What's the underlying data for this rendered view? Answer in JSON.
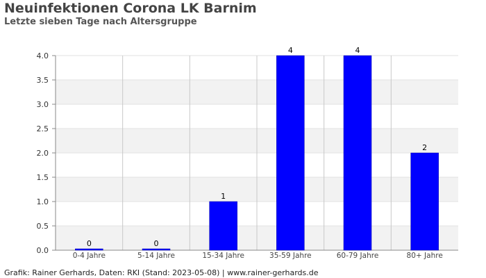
{
  "title": "Neuinfektionen Corona LK Barnim",
  "subtitle": "Letzte sieben Tage nach Altersgruppe",
  "footer": "Grafik: Rainer Gerhards, Daten: RKI (Stand: 2023-05-08) | www.rainer-gerhards.de",
  "colors": {
    "bar": "#0000ff",
    "band": "#f2f2f2",
    "grid": "#c8c8c8"
  },
  "chart_data": {
    "type": "bar",
    "categories": [
      "0-4 Jahre",
      "5-14 Jahre",
      "15-34 Jahre",
      "35-59 Jahre",
      "60-79 Jahre",
      "80+ Jahre"
    ],
    "values": [
      0,
      0,
      1,
      4,
      4,
      2
    ],
    "data_labels": [
      "0",
      "0",
      "1",
      "4",
      "4",
      "2"
    ],
    "yticks": [
      "0.0",
      "0.5",
      "1.0",
      "1.5",
      "2.0",
      "2.5",
      "3.0",
      "3.5",
      "4.0"
    ],
    "ylim": [
      0,
      4
    ],
    "grid": true,
    "xlabel": "",
    "ylabel": ""
  }
}
